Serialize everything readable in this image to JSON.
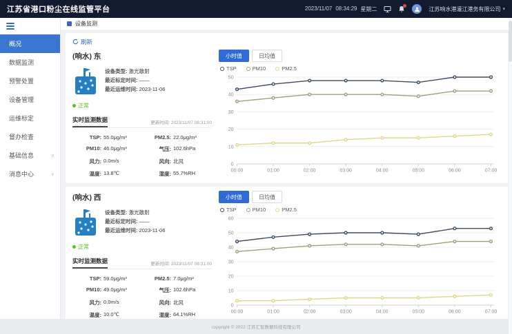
{
  "header": {
    "title": "江苏省港口粉尘在线监管平台",
    "date": "2023/11/07",
    "time": "08:34:29",
    "weekday": "星期二",
    "company": "江苏响水港灌江港务有限公司",
    "caret": "▾"
  },
  "icons": {
    "screen": "monitor-icon",
    "bell": "bell-icon",
    "avatar": "user-avatar-icon",
    "hamburger": "menu-icon",
    "breadcrumb": "device-monitor-icon",
    "refresh": "refresh-icon"
  },
  "sidebar": {
    "items": [
      {
        "label": "概况"
      },
      {
        "label": "数据监测"
      },
      {
        "label": "预警处置"
      },
      {
        "label": "设备管理"
      },
      {
        "label": "运维标定"
      },
      {
        "label": "督办检查"
      },
      {
        "label": "基础信息"
      },
      {
        "label": "消息中心"
      }
    ],
    "chevron": "∨"
  },
  "breadcrumb": "设备监测",
  "toolbar": {
    "refresh_label": "刷新"
  },
  "tabs": {
    "hourly": "小时值",
    "daily": "日均值"
  },
  "devices": [
    {
      "title": "(响水) 东",
      "status": "正常",
      "info": {
        "type_label": "设备类型:",
        "type_value": "激光散射",
        "calib_label": "最近标定时间:",
        "calib_value": "——",
        "maint_label": "最近运维时间:",
        "maint_value": "2023-11-06"
      },
      "realtime": {
        "title": "实时监测数据",
        "updated": "更新时间: 2023/11/07 08:31:00",
        "metrics": [
          {
            "label": "TSP:",
            "value": "55.0μg/m³"
          },
          {
            "label": "PM2.5:",
            "value": "22.0μg/m³"
          },
          {
            "label": "PM10:",
            "value": "46.0μg/m³"
          },
          {
            "label": "气压:",
            "value": "102.6hPa"
          },
          {
            "label": "风力:",
            "value": "0.0m/s"
          },
          {
            "label": "风向:",
            "value": "北风"
          },
          {
            "label": "温度:",
            "value": "13.8℃"
          },
          {
            "label": "湿度:",
            "value": "55.7%RH"
          }
        ]
      }
    },
    {
      "title": "(响水) 西",
      "status": "正常",
      "info": {
        "type_label": "设备类型:",
        "type_value": "激光散射",
        "calib_label": "最近标定时间:",
        "calib_value": "——",
        "maint_label": "最近运维时间:",
        "maint_value": "2023-11-06"
      },
      "realtime": {
        "title": "实时监测数据",
        "updated": "更新时间: 2023/11/07 08:31:00",
        "metrics": [
          {
            "label": "TSP:",
            "value": "59.0μg/m³"
          },
          {
            "label": "PM2.5:",
            "value": "7.0μg/m³"
          },
          {
            "label": "PM10:",
            "value": "49.0μg/m³"
          },
          {
            "label": "气压:",
            "value": "102.6hPa"
          },
          {
            "label": "风力:",
            "value": "0.0m/s"
          },
          {
            "label": "风向:",
            "value": "北风"
          },
          {
            "label": "温度:",
            "value": "10.0℃"
          },
          {
            "label": "湿度:",
            "value": "64.1%RH"
          }
        ]
      }
    }
  ],
  "chart_data": [
    {
      "type": "line",
      "title": "",
      "xlabel": "",
      "ylabel": "",
      "x": [
        "00:00",
        "01:00",
        "02:00",
        "03:00",
        "04:00",
        "05:00",
        "06:00",
        "07:00"
      ],
      "ylim": [
        0,
        50
      ],
      "ytick_step": 10,
      "grid": true,
      "legend_position": "top",
      "series": [
        {
          "name": "TSP",
          "color": "#3c4a63",
          "values": [
            43,
            46,
            48,
            48,
            48,
            47,
            50,
            50
          ]
        },
        {
          "name": "PM10",
          "color": "#96a578",
          "values": [
            36,
            38,
            40,
            40,
            40,
            39,
            42,
            42
          ]
        },
        {
          "name": "PM2.5",
          "color": "#ddd884",
          "values": [
            11,
            12,
            12,
            14,
            15,
            15,
            16,
            17
          ]
        }
      ]
    },
    {
      "type": "line",
      "title": "",
      "xlabel": "",
      "ylabel": "",
      "x": [
        "00:00",
        "01:00",
        "02:00",
        "03:00",
        "04:00",
        "05:00",
        "06:00",
        "07:00"
      ],
      "ylim": [
        0,
        60
      ],
      "ytick_step": 10,
      "grid": true,
      "legend_position": "top",
      "series": [
        {
          "name": "TSP",
          "color": "#3c4a63",
          "values": [
            44,
            47,
            49,
            50,
            50,
            49,
            53,
            53
          ]
        },
        {
          "name": "PM10",
          "color": "#96a578",
          "values": [
            37,
            39,
            41,
            42,
            42,
            41,
            44,
            44
          ]
        },
        {
          "name": "PM2.5",
          "color": "#ddd884",
          "values": [
            3,
            3,
            4,
            5,
            5,
            5,
            6,
            7
          ]
        }
      ]
    }
  ],
  "footer": "copyright © 2022 江苏汇智数据科技有限公司"
}
